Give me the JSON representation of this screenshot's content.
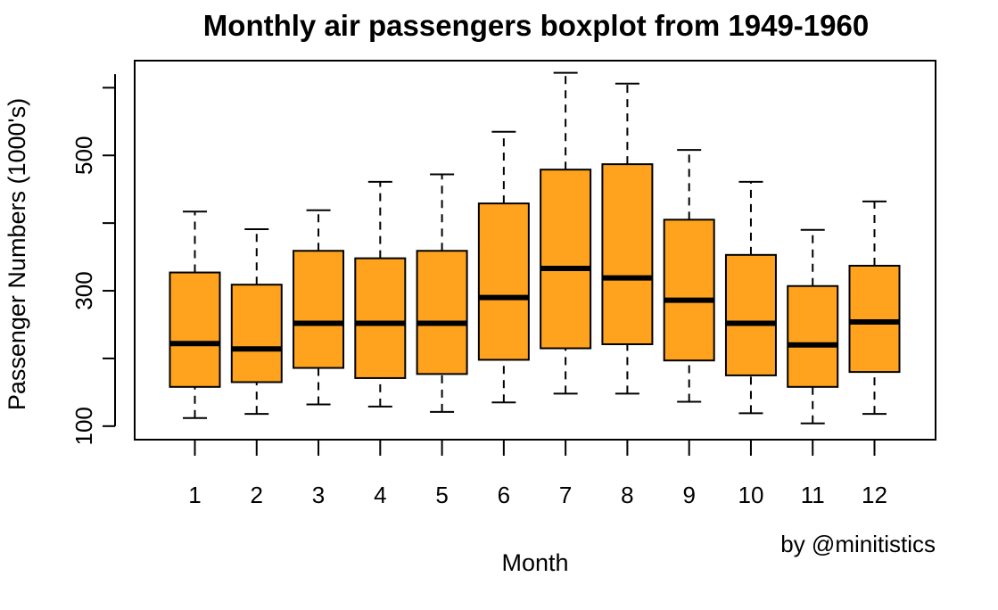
{
  "chart_data": {
    "type": "boxplot",
    "title": "Monthly air passengers boxplot from 1949-1960",
    "xlabel": "Month",
    "ylabel": "Passenger Numbers (1000's)",
    "annotation": "by @minitistics",
    "categories": [
      "1",
      "2",
      "3",
      "4",
      "5",
      "6",
      "7",
      "8",
      "9",
      "10",
      "11",
      "12"
    ],
    "ylim": [
      80,
      640
    ],
    "y_ticks": [
      100,
      300,
      500
    ],
    "box_color": "#FFA31F",
    "series": [
      {
        "name": "1",
        "min": 112,
        "q1": 158,
        "median": 222,
        "q3": 327,
        "max": 417
      },
      {
        "name": "2",
        "min": 118,
        "q1": 165,
        "median": 214,
        "q3": 309,
        "max": 391
      },
      {
        "name": "3",
        "min": 132,
        "q1": 186,
        "median": 252,
        "q3": 359,
        "max": 419
      },
      {
        "name": "4",
        "min": 129,
        "q1": 171,
        "median": 252,
        "q3": 348,
        "max": 461
      },
      {
        "name": "5",
        "min": 121,
        "q1": 177,
        "median": 252,
        "q3": 359,
        "max": 472
      },
      {
        "name": "6",
        "min": 135,
        "q1": 198,
        "median": 290,
        "q3": 429,
        "max": 535
      },
      {
        "name": "7",
        "min": 148,
        "q1": 215,
        "median": 333,
        "q3": 479,
        "max": 622
      },
      {
        "name": "8",
        "min": 148,
        "q1": 221,
        "median": 319,
        "q3": 487,
        "max": 606
      },
      {
        "name": "9",
        "min": 136,
        "q1": 197,
        "median": 286,
        "q3": 405,
        "max": 508
      },
      {
        "name": "10",
        "min": 119,
        "q1": 175,
        "median": 252,
        "q3": 353,
        "max": 461
      },
      {
        "name": "11",
        "min": 104,
        "q1": 158,
        "median": 220,
        "q3": 307,
        "max": 390
      },
      {
        "name": "12",
        "min": 118,
        "q1": 180,
        "median": 254,
        "q3": 337,
        "max": 432
      }
    ]
  }
}
